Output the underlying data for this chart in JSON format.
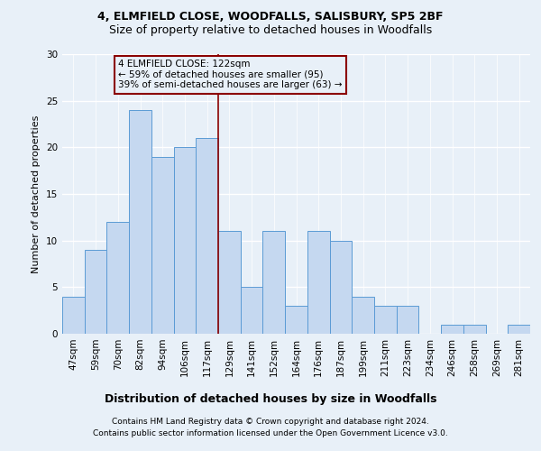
{
  "title_line1": "4, ELMFIELD CLOSE, WOODFALLS, SALISBURY, SP5 2BF",
  "title_line2": "Size of property relative to detached houses in Woodfalls",
  "xlabel": "Distribution of detached houses by size in Woodfalls",
  "ylabel": "Number of detached properties",
  "footer_line1": "Contains HM Land Registry data © Crown copyright and database right 2024.",
  "footer_line2": "Contains public sector information licensed under the Open Government Licence v3.0.",
  "bar_labels": [
    "47sqm",
    "59sqm",
    "70sqm",
    "82sqm",
    "94sqm",
    "106sqm",
    "117sqm",
    "129sqm",
    "141sqm",
    "152sqm",
    "164sqm",
    "176sqm",
    "187sqm",
    "199sqm",
    "211sqm",
    "223sqm",
    "234sqm",
    "246sqm",
    "258sqm",
    "269sqm",
    "281sqm"
  ],
  "bar_values": [
    4,
    9,
    12,
    24,
    19,
    20,
    21,
    11,
    5,
    11,
    3,
    11,
    10,
    4,
    3,
    3,
    0,
    1,
    1,
    0,
    1
  ],
  "bar_color": "#c5d8f0",
  "bar_edge_color": "#5b9bd5",
  "ylim": [
    0,
    30
  ],
  "yticks": [
    0,
    5,
    10,
    15,
    20,
    25,
    30
  ],
  "property_line_x": 6.5,
  "property_line_color": "#8b0000",
  "annotation_text": "4 ELMFIELD CLOSE: 122sqm\n← 59% of detached houses are smaller (95)\n39% of semi-detached houses are larger (63) →",
  "annotation_box_color": "#8b0000",
  "background_color": "#e8f0f8",
  "grid_color": "#ffffff",
  "title_fontsize": 9,
  "subtitle_fontsize": 9,
  "ylabel_fontsize": 8,
  "xlabel_fontsize": 9,
  "tick_fontsize": 7.5,
  "footer_fontsize": 6.5,
  "annot_fontsize": 7.5
}
